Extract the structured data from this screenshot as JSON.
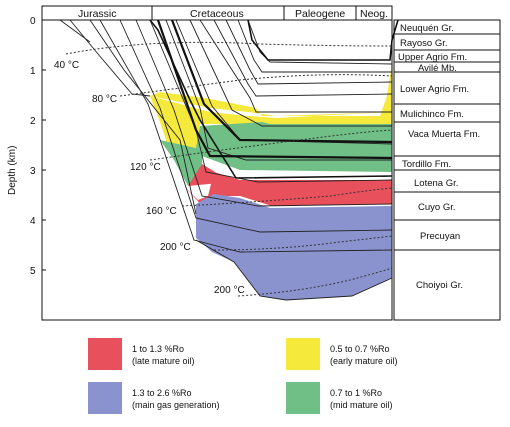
{
  "periods": [
    "Jurassic",
    "Cretaceous",
    "Paleogene",
    "Neog."
  ],
  "y_axis": {
    "title": "Depth (km)",
    "ticks": [
      "0",
      "1",
      "2",
      "3",
      "4",
      "5"
    ]
  },
  "formations": [
    "Neuquén Gr.",
    "Rayoso Gr.",
    "Upper Agrio Fm.",
    "Avilé Mb.",
    "Lower Agrio Fm.",
    "Mulichinco Fm.",
    "Vaca Muerta Fm.",
    "Tordillo Fm.",
    "Lotena Gr.",
    "Cuyo Gr.",
    "Precuyan",
    "Choiyoi Gr."
  ],
  "isotherms": [
    "40 °C",
    "80 °C",
    "120 °C",
    "160 °C",
    "200 °C",
    "200 °C"
  ],
  "legend": [
    {
      "line1": "1 to 1.3 %Ro",
      "line2": "(late mature oil)",
      "color": "#e8505b"
    },
    {
      "line1": "0.5 to 0.7 %Ro",
      "line2": "(early mature oil)",
      "color": "#f5ea3c"
    },
    {
      "line1": "1.3 to 2.6 %Ro",
      "line2": "(main gas generation)",
      "color": "#8b93cf"
    },
    {
      "line1": "0.7 to 1 %Ro",
      "line2": "(mid mature oil)",
      "color": "#6fbf86"
    }
  ],
  "colors": {
    "late_mature_oil": "#e8505b",
    "early_mature_oil": "#f5ea3c",
    "gas_generation": "#8b93cf",
    "mid_mature_oil": "#6fbf86"
  }
}
